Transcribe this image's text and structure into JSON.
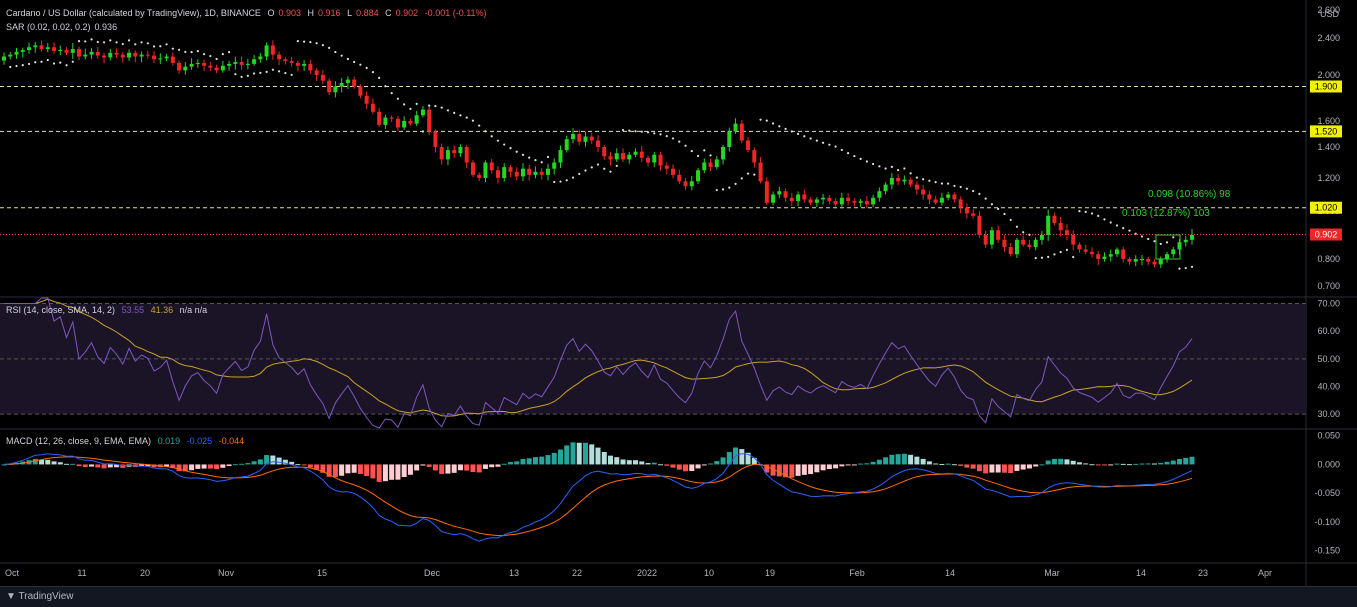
{
  "header": {
    "title": "Cardano / US Dollar (calculated by TradingView), 1D, BINANCE",
    "o_label": "O",
    "o_value": "0.903",
    "h_label": "H",
    "h_value": "0.916",
    "l_label": "L",
    "l_value": "0.884",
    "c_label": "C",
    "c_value": "0.902",
    "change": "-0.001 (-0.11%)",
    "sar_label": "SAR (0.02, 0.02, 0.2)",
    "sar_value": "0.936",
    "currency": "USD"
  },
  "rsi_legend": {
    "label": "RSI (14, close, SMA, 14, 2)",
    "rsi": "53.55",
    "sma": "41.36",
    "na": "n/a  n/a"
  },
  "macd_legend": {
    "label": "MACD (12, 26, close, 9, EMA, EMA)",
    "hist": "0.019",
    "macd": "-0.025",
    "signal": "-0.044"
  },
  "footer": {
    "brand": "TradingView"
  },
  "colors": {
    "up": "#26d626",
    "down": "#ef2626",
    "rsi": "#7e57c2",
    "rsi_sma": "#c9a227",
    "macd": "#2962ff",
    "signal": "#ff6d00",
    "level": "#f2f200"
  },
  "chart_data": [
    {
      "type": "candlestick",
      "title": "Cardano / US Dollar (calculated by TradingView), 1D, BINANCE",
      "x_ticks": [
        "Oct",
        "11",
        "20",
        "Nov",
        "15",
        "Dec",
        "13",
        "22",
        "2022",
        "10",
        "19",
        "Feb",
        "14",
        "Mar",
        "14",
        "23",
        "Apr"
      ],
      "y_ticks": [
        "2.600",
        "2.400",
        "2.000",
        "1.600",
        "1.400",
        "1.200",
        "1.000",
        "0.800",
        "0.700"
      ],
      "horizontal_levels": [
        "1.900",
        "1.520",
        "1.020"
      ],
      "last_price": "0.902",
      "annotations": [
        "0.098 (10.86%) 98",
        "0.103 (12.87%) 103"
      ],
      "close_series": [
        2.2,
        2.22,
        2.25,
        2.27,
        2.3,
        2.32,
        2.28,
        2.3,
        2.26,
        2.27,
        2.24,
        2.28,
        2.2,
        2.22,
        2.25,
        2.21,
        2.19,
        2.24,
        2.22,
        2.19,
        2.24,
        2.2,
        2.22,
        2.21,
        2.17,
        2.18,
        2.2,
        2.13,
        2.05,
        2.09,
        2.12,
        2.13,
        2.1,
        2.08,
        2.05,
        2.1,
        2.12,
        2.14,
        2.11,
        2.12,
        2.17,
        2.2,
        2.32,
        2.22,
        2.17,
        2.15,
        2.13,
        2.1,
        2.12,
        2.05,
        2.0,
        1.95,
        1.85,
        1.9,
        1.93,
        1.96,
        1.9,
        1.82,
        1.75,
        1.68,
        1.57,
        1.63,
        1.62,
        1.55,
        1.6,
        1.58,
        1.65,
        1.7,
        1.52,
        1.4,
        1.32,
        1.38,
        1.36,
        1.4,
        1.3,
        1.22,
        1.2,
        1.3,
        1.25,
        1.2,
        1.27,
        1.24,
        1.21,
        1.26,
        1.22,
        1.24,
        1.22,
        1.26,
        1.3,
        1.38,
        1.46,
        1.5,
        1.44,
        1.48,
        1.45,
        1.4,
        1.34,
        1.32,
        1.36,
        1.32,
        1.35,
        1.37,
        1.33,
        1.3,
        1.35,
        1.28,
        1.26,
        1.22,
        1.18,
        1.15,
        1.18,
        1.25,
        1.3,
        1.27,
        1.32,
        1.4,
        1.52,
        1.58,
        1.45,
        1.38,
        1.3,
        1.18,
        1.05,
        1.1,
        1.12,
        1.08,
        1.06,
        1.1,
        1.07,
        1.05,
        1.07,
        1.08,
        1.06,
        1.04,
        1.08,
        1.06,
        1.05,
        1.06,
        1.04,
        1.08,
        1.12,
        1.16,
        1.2,
        1.18,
        1.19,
        1.16,
        1.13,
        1.1,
        1.07,
        1.05,
        1.08,
        1.1,
        1.07,
        1.02,
        0.99,
        0.98,
        0.9,
        0.86,
        0.92,
        0.88,
        0.85,
        0.82,
        0.88,
        0.86,
        0.85,
        0.88,
        0.9,
        0.98,
        0.95,
        0.92,
        0.9,
        0.86,
        0.84,
        0.83,
        0.82,
        0.8,
        0.81,
        0.82,
        0.84,
        0.8,
        0.79,
        0.8,
        0.8,
        0.79,
        0.78,
        0.8,
        0.82,
        0.84,
        0.87,
        0.88,
        0.9
      ]
    },
    {
      "type": "line",
      "title": "RSI (14, close, SMA, 14, 2)",
      "y_ticks": [
        "70.00",
        "60.00",
        "50.00",
        "40.00",
        "30.00"
      ],
      "ylim": [
        25,
        72
      ],
      "series": [
        {
          "name": "RSI",
          "last": 53.55
        },
        {
          "name": "SMA",
          "last": 41.36
        }
      ]
    },
    {
      "type": "bar",
      "title": "MACD (12, 26, close, 9, EMA, EMA)",
      "y_ticks": [
        "0.050",
        "0.000",
        "-0.050",
        "-0.100",
        "-0.150"
      ],
      "ylim": [
        -0.17,
        0.06
      ],
      "series": [
        {
          "name": "Histogram",
          "last": 0.019
        },
        {
          "name": "MACD",
          "last": -0.025
        },
        {
          "name": "Signal",
          "last": -0.044
        }
      ]
    }
  ]
}
